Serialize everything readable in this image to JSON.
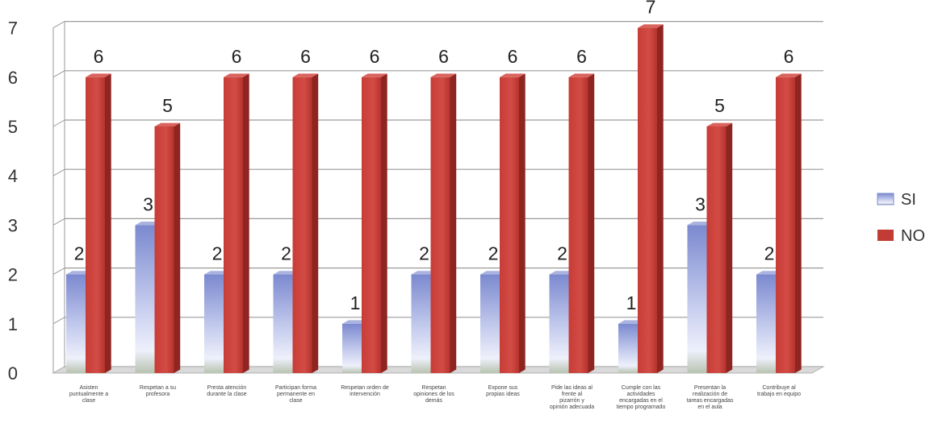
{
  "chart_data": {
    "type": "bar",
    "categories": [
      "Asisten puntualmente a clase",
      "Respetan a su profesora",
      "Presta atención durante la clase",
      "Participan forma permanente en clase",
      "Respetan orden de intervención",
      "Respetan opiniones de los demás",
      "Expone sus propias ideas",
      "Pide las ideas al frente al pizarrón y opinión adecuada",
      "Cumple con las actividades encargadas en el tiempo programado",
      "Presentan la realización de tareas encargadas en el aula",
      "Contribuye al trabajo en equipo"
    ],
    "series": [
      {
        "name": "SI",
        "values": [
          2,
          3,
          2,
          2,
          1,
          2,
          2,
          2,
          1,
          3,
          2
        ]
      },
      {
        "name": "NO",
        "values": [
          6,
          5,
          6,
          6,
          6,
          6,
          6,
          6,
          7,
          5,
          6
        ]
      }
    ],
    "ylim": [
      0,
      7
    ],
    "yticks": [
      "0",
      "1",
      "2",
      "3",
      "4",
      "5",
      "6",
      "7"
    ],
    "grid": true,
    "legend_position": "right",
    "colors": {
      "SI": "#8f9fd6",
      "NO": "#c23b35"
    }
  },
  "legend": {
    "si": "SI",
    "no": "NO"
  }
}
